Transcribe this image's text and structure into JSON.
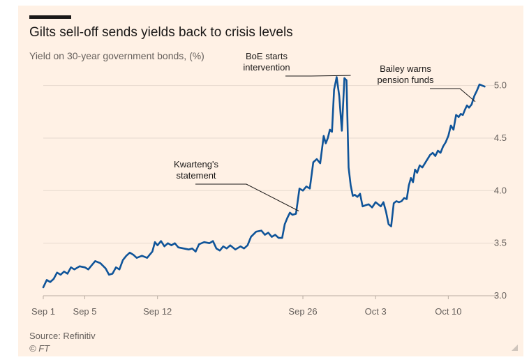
{
  "header": {
    "title": "Gilts sell-off sends yields back to crisis levels",
    "subtitle": "Yield on 30-year government bonds, (%)"
  },
  "footer": {
    "source": "Source: Refinitiv",
    "copyright": "© FT"
  },
  "colors": {
    "background": "#fff1e5",
    "line": "#0f5499",
    "grid": "#e6d9ce",
    "text": "#1a1817",
    "muted": "#66605c"
  },
  "chart_data": {
    "type": "line",
    "title": "Gilts sell-off sends yields back to crisis levels",
    "subtitle": "Yield on 30-year government bonds, (%)",
    "xlabel": "",
    "ylabel": "",
    "ylim": [
      3.0,
      5.15
    ],
    "xlim": [
      "2022-09-01",
      "2022-10-13"
    ],
    "yticks": [
      3.0,
      3.5,
      4.0,
      4.5,
      5.0
    ],
    "ytick_labels": [
      "3.0",
      "3.5",
      "4.0",
      "4.5",
      "5.0"
    ],
    "xticks": [
      {
        "date": "2022-09-01",
        "label": "Sep 1"
      },
      {
        "date": "2022-09-05",
        "label": "Sep 5"
      },
      {
        "date": "2022-09-12",
        "label": "Sep 12"
      },
      {
        "date": "2022-09-26",
        "label": "Sep 26"
      },
      {
        "date": "2022-10-03",
        "label": "Oct 3"
      },
      {
        "date": "2022-10-10",
        "label": "Oct 10"
      }
    ],
    "grid": "horizontal",
    "y_axis_side": "right",
    "series": [
      {
        "values": [
          [
            "2022-09-01",
            3.08
          ],
          [
            "2022-09-01",
            3.15
          ],
          [
            "2022-09-01",
            3.13
          ],
          [
            "2022-09-02",
            3.16
          ],
          [
            "2022-09-02",
            3.22
          ],
          [
            "2022-09-02",
            3.2
          ],
          [
            "2022-09-03",
            3.23
          ],
          [
            "2022-09-03",
            3.21
          ],
          [
            "2022-09-03",
            3.27
          ],
          [
            "2022-09-04",
            3.25
          ],
          [
            "2022-09-04",
            3.28
          ],
          [
            "2022-09-05",
            3.27
          ],
          [
            "2022-09-05",
            3.25
          ],
          [
            "2022-09-05",
            3.29
          ],
          [
            "2022-09-06",
            3.33
          ],
          [
            "2022-09-06",
            3.31
          ],
          [
            "2022-09-07",
            3.26
          ],
          [
            "2022-09-07",
            3.2
          ],
          [
            "2022-09-07",
            3.21
          ],
          [
            "2022-09-08",
            3.27
          ],
          [
            "2022-09-08",
            3.25
          ],
          [
            "2022-09-08",
            3.34
          ],
          [
            "2022-09-09",
            3.38
          ],
          [
            "2022-09-09",
            3.41
          ],
          [
            "2022-09-09",
            3.39
          ],
          [
            "2022-09-10",
            3.36
          ],
          [
            "2022-09-10",
            3.38
          ],
          [
            "2022-09-11",
            3.36
          ],
          [
            "2022-09-11",
            3.39
          ],
          [
            "2022-09-11",
            3.42
          ],
          [
            "2022-09-11",
            3.51
          ],
          [
            "2022-09-12",
            3.48
          ],
          [
            "2022-09-12",
            3.52
          ],
          [
            "2022-09-12",
            3.47
          ],
          [
            "2022-09-13",
            3.5
          ],
          [
            "2022-09-13",
            3.48
          ],
          [
            "2022-09-13",
            3.5
          ],
          [
            "2022-09-14",
            3.46
          ],
          [
            "2022-09-14",
            3.45
          ],
          [
            "2022-09-15",
            3.44
          ],
          [
            "2022-09-15",
            3.45
          ],
          [
            "2022-09-15",
            3.42
          ],
          [
            "2022-09-16",
            3.49
          ],
          [
            "2022-09-16",
            3.51
          ],
          [
            "2022-09-17",
            3.5
          ],
          [
            "2022-09-17",
            3.52
          ],
          [
            "2022-09-17",
            3.45
          ],
          [
            "2022-09-18",
            3.43
          ],
          [
            "2022-09-18",
            3.47
          ],
          [
            "2022-09-18",
            3.45
          ],
          [
            "2022-09-19",
            3.48
          ],
          [
            "2022-09-19",
            3.44
          ],
          [
            "2022-09-20",
            3.47
          ],
          [
            "2022-09-20",
            3.45
          ],
          [
            "2022-09-20",
            3.48
          ],
          [
            "2022-09-21",
            3.56
          ],
          [
            "2022-09-21",
            3.61
          ],
          [
            "2022-09-22",
            3.62
          ],
          [
            "2022-09-22",
            3.58
          ],
          [
            "2022-09-22",
            3.6
          ],
          [
            "2022-09-23",
            3.56
          ],
          [
            "2022-09-23",
            3.58
          ],
          [
            "2022-09-23",
            3.55
          ],
          [
            "2022-09-24",
            3.55
          ],
          [
            "2022-09-24",
            3.68
          ],
          [
            "2022-09-24",
            3.74
          ],
          [
            "2022-09-24",
            3.79
          ],
          [
            "2022-09-25",
            3.77
          ],
          [
            "2022-09-25",
            3.78
          ],
          [
            "2022-09-25",
            4.02
          ],
          [
            "2022-09-26",
            4.0
          ],
          [
            "2022-09-26",
            4.04
          ],
          [
            "2022-09-26",
            4.02
          ],
          [
            "2022-09-27",
            4.27
          ],
          [
            "2022-09-27",
            4.3
          ],
          [
            "2022-09-27",
            4.26
          ],
          [
            "2022-09-28",
            4.52
          ],
          [
            "2022-09-28",
            4.45
          ],
          [
            "2022-09-28",
            4.5
          ],
          [
            "2022-09-28",
            4.58
          ],
          [
            "2022-09-28",
            4.56
          ],
          [
            "2022-09-29",
            4.96
          ],
          [
            "2022-09-29",
            5.08
          ],
          [
            "2022-09-29",
            4.9
          ],
          [
            "2022-09-29",
            4.57
          ],
          [
            "2022-09-30",
            5.07
          ],
          [
            "2022-09-30",
            5.05
          ],
          [
            "2022-09-30",
            4.22
          ],
          [
            "2022-09-30",
            4.05
          ],
          [
            "2022-09-30",
            3.95
          ],
          [
            "2022-10-01",
            3.96
          ],
          [
            "2022-10-01",
            3.94
          ],
          [
            "2022-10-01",
            3.97
          ],
          [
            "2022-10-01",
            3.85
          ],
          [
            "2022-10-02",
            3.86
          ],
          [
            "2022-10-02",
            3.87
          ],
          [
            "2022-10-02",
            3.84
          ],
          [
            "2022-10-03",
            3.89
          ],
          [
            "2022-10-03",
            3.87
          ],
          [
            "2022-10-03",
            3.85
          ],
          [
            "2022-10-03",
            3.89
          ],
          [
            "2022-10-04",
            3.8
          ],
          [
            "2022-10-04",
            3.68
          ],
          [
            "2022-10-04",
            3.66
          ],
          [
            "2022-10-04",
            3.88
          ],
          [
            "2022-10-05",
            3.9
          ],
          [
            "2022-10-05",
            3.89
          ],
          [
            "2022-10-05",
            3.9
          ],
          [
            "2022-10-05",
            3.93
          ],
          [
            "2022-10-06",
            3.92
          ],
          [
            "2022-10-06",
            4.05
          ],
          [
            "2022-10-06",
            4.12
          ],
          [
            "2022-10-06",
            4.08
          ],
          [
            "2022-10-06",
            4.2
          ],
          [
            "2022-10-07",
            4.17
          ],
          [
            "2022-10-07",
            4.24
          ],
          [
            "2022-10-07",
            4.22
          ],
          [
            "2022-10-07",
            4.26
          ],
          [
            "2022-10-08",
            4.3
          ],
          [
            "2022-10-08",
            4.34
          ],
          [
            "2022-10-08",
            4.36
          ],
          [
            "2022-10-08",
            4.33
          ],
          [
            "2022-10-09",
            4.38
          ],
          [
            "2022-10-09",
            4.36
          ],
          [
            "2022-10-09",
            4.42
          ],
          [
            "2022-10-09",
            4.46
          ],
          [
            "2022-10-10",
            4.52
          ],
          [
            "2022-10-10",
            4.62
          ],
          [
            "2022-10-10",
            4.58
          ],
          [
            "2022-10-10",
            4.72
          ],
          [
            "2022-10-11",
            4.7
          ],
          [
            "2022-10-11",
            4.73
          ],
          [
            "2022-10-11",
            4.72
          ],
          [
            "2022-10-11",
            4.77
          ],
          [
            "2022-10-11",
            4.81
          ],
          [
            "2022-10-12",
            4.79
          ],
          [
            "2022-10-12",
            4.82
          ],
          [
            "2022-10-12",
            4.9
          ],
          [
            "2022-10-12",
            4.95
          ],
          [
            "2022-10-13",
            5.01
          ],
          [
            "2022-10-13",
            4.99
          ]
        ]
      }
    ],
    "annotations": [
      {
        "lines": [
          "Kwarteng's",
          "statement"
        ],
        "date": "2022-09-25",
        "value": 3.78
      },
      {
        "lines": [
          "BoE starts",
          "intervention"
        ],
        "date": "2022-09-30",
        "value": 5.07
      },
      {
        "lines": [
          "Bailey warns",
          "pension funds"
        ],
        "date": "2022-10-12",
        "value": 4.82
      }
    ]
  }
}
